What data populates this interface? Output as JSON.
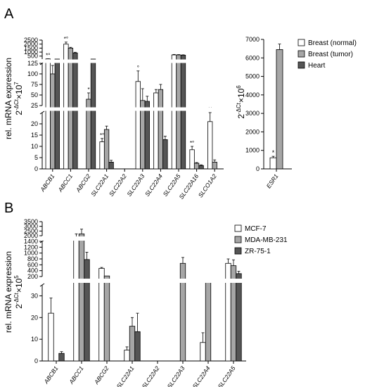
{
  "chart_data": [
    {
      "type": "bar",
      "panel": "A",
      "ylabel_line1": "rel. mRNA expression",
      "ylabel_line2": "2",
      "ylabel_sup": "-ΔCt",
      "ylabel_mult": "×10",
      "ylabel_exp": "7",
      "categories": [
        "ABCB1",
        "ABCC1",
        "ABCG2",
        "SLC22A1",
        "SLC22A2",
        "SLC22A3",
        "SLC22A4",
        "SLC22A5",
        "SLC22A16",
        "SLCO1A2"
      ],
      "y_ticks_low": [
        "0",
        "5",
        "10",
        "15",
        "20",
        "25"
      ],
      "y_ticks_mid": [
        "25",
        "50",
        "75",
        "100",
        "125"
      ],
      "y_ticks_high": [
        "500",
        "1000",
        "1500",
        "2000",
        "2500"
      ],
      "series": [
        {
          "name": "Breast (normal)",
          "color": "#ffffff",
          "values": [
            150,
            2000,
            null,
            12,
            0,
            82,
            55,
            650,
            8.5,
            21
          ],
          "errors": [
            10,
            250,
            null,
            1.5,
            0,
            25,
            8,
            60,
            1.5,
            4
          ]
        },
        {
          "name": "Breast (tumor)",
          "color": "#a6a6a6",
          "values": [
            100,
            1500,
            40,
            17.5,
            0,
            37,
            63,
            650,
            2.5,
            3
          ],
          "errors": [
            20,
            100,
            15,
            1.5,
            0,
            28,
            12,
            40,
            0.3,
            1
          ]
        },
        {
          "name": "Heart",
          "color": "#555555",
          "values": [
            130,
            900,
            130,
            3,
            0,
            35,
            13,
            620,
            1.5,
            null
          ],
          "errors": [
            0,
            80,
            0,
            0.8,
            0,
            12,
            1.5,
            40,
            0.3,
            null
          ]
        }
      ],
      "annotations": [
        {
          "category": "ABCB1",
          "series": "Breast (normal)",
          "marks": "*°"
        },
        {
          "category": "ABCC1",
          "series": "Breast (normal)",
          "marks": "*°"
        },
        {
          "category": "ABCG2",
          "series": "Breast (tumor)",
          "marks": "*"
        },
        {
          "category": "SLC22A1",
          "series": "Breast (normal)",
          "marks": "*°"
        },
        {
          "category": "SLC22A3",
          "series": "Breast (normal)",
          "marks": "°"
        },
        {
          "category": "SLC22A16",
          "series": "Breast (normal)",
          "marks": "*°"
        },
        {
          "category": "SLCO1A2",
          "series": "Breast (normal)",
          "marks": "**"
        }
      ]
    },
    {
      "type": "bar",
      "panel": "A-inset",
      "ylabel_line1": "2",
      "ylabel_sup": "-ΔCt",
      "ylabel_mult": "×10",
      "ylabel_exp": "6",
      "categories": [
        "ESR1"
      ],
      "ylim": [
        0,
        7000
      ],
      "y_ticks": [
        "0",
        "1000",
        "2000",
        "3000",
        "4000",
        "5000",
        "6000",
        "7000"
      ],
      "series": [
        {
          "name": "Breast (normal)",
          "color": "#ffffff",
          "values": [
            600
          ],
          "errors": [
            80
          ]
        },
        {
          "name": "Breast (tumor)",
          "color": "#a6a6a6",
          "values": [
            6450
          ],
          "errors": [
            300
          ]
        }
      ],
      "annotations": [
        {
          "category": "ESR1",
          "series": "Breast (normal)",
          "marks": "*"
        }
      ],
      "legend": [
        "Breast (normal)",
        "Breast (tumor)",
        "Heart"
      ],
      "legend_colors": [
        "#ffffff",
        "#a6a6a6",
        "#555555"
      ],
      "legend_position": "top-right"
    },
    {
      "type": "bar",
      "panel": "B",
      "ylabel_line1": "rel. mRNA expression",
      "ylabel_line2": "2",
      "ylabel_sup": "-ΔCt",
      "ylabel_mult": "×10",
      "ylabel_exp": "5",
      "categories": [
        "ABCB1",
        "ABCC1",
        "ABCG2",
        "SLC22A1",
        "SLC22A2",
        "SLC22A3",
        "SLC22A4",
        "SLC22A5"
      ],
      "y_ticks_low": [
        "0",
        "10",
        "20",
        "30"
      ],
      "y_ticks_mid": [
        "200",
        "400",
        "600",
        "800",
        "1000",
        "1200",
        "1400"
      ],
      "y_ticks_high": [
        "2000",
        "2500",
        "3000",
        "3500"
      ],
      "series": [
        {
          "name": "MCF-7",
          "color": "#ffffff",
          "values": [
            22,
            1900,
            480,
            5,
            0,
            null,
            8.5,
            650
          ],
          "errors": [
            7,
            300,
            30,
            1.5,
            0,
            null,
            4.5,
            150
          ]
        },
        {
          "name": "MDA-MB-231",
          "color": "#a6a6a6",
          "values": [
            null,
            2200,
            220,
            16,
            0,
            650,
            150,
            570
          ],
          "errors": [
            null,
            500,
            0,
            4,
            0,
            200,
            40,
            200
          ]
        },
        {
          "name": "ZR-75-1",
          "color": "#555555",
          "values": [
            3.5,
            780,
            null,
            13.5,
            0,
            null,
            null,
            300
          ],
          "errors": [
            0.8,
            250,
            null,
            8.5,
            0,
            null,
            null,
            80
          ]
        }
      ],
      "legend": [
        "MCF-7",
        "MDA-MB-231",
        "ZR-75-1"
      ],
      "legend_colors": [
        "#ffffff",
        "#a6a6a6",
        "#555555"
      ],
      "legend_position": "top-right"
    }
  ],
  "panel_labels": {
    "a": "A",
    "b": "B"
  }
}
